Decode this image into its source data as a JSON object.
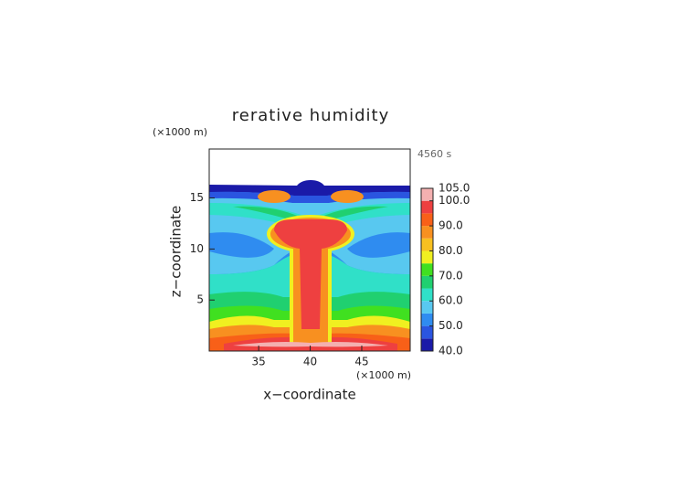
{
  "chart_data": {
    "type": "contour",
    "title": "rerative humidity",
    "x_label": "x−coordinate",
    "y_label": "z−coordinate",
    "x_unit": "(×1000 m)",
    "y_unit": "(×1000 m)",
    "time_label": "4560 s",
    "xlim": [
      30.2,
      49.7
    ],
    "ylim": [
      0,
      19.8
    ],
    "xticks": [
      35,
      40,
      45
    ],
    "yticks": [
      5,
      10,
      15
    ],
    "colorbar": {
      "levels": [
        40,
        45,
        50,
        55,
        60,
        65,
        70,
        75,
        80,
        85,
        90,
        95,
        100,
        105
      ],
      "colors": [
        "#1a1aa8",
        "#2a55e0",
        "#2f8cf0",
        "#58c8f0",
        "#30e0c8",
        "#20d070",
        "#40e020",
        "#f0f020",
        "#f8c020",
        "#f89020",
        "#f86018",
        "#ee4040",
        "#f4b0b0"
      ],
      "ticks": [
        {
          "value": 40,
          "label": "40.0"
        },
        {
          "value": 50,
          "label": "50.0"
        },
        {
          "value": 60,
          "label": "60.0"
        },
        {
          "value": 70,
          "label": "70.0"
        },
        {
          "value": 80,
          "label": "80.0"
        },
        {
          "value": 90,
          "label": "90.0"
        },
        {
          "value": 100,
          "label": "100.0"
        },
        {
          "value": 105,
          "label": "105.0"
        }
      ]
    }
  }
}
